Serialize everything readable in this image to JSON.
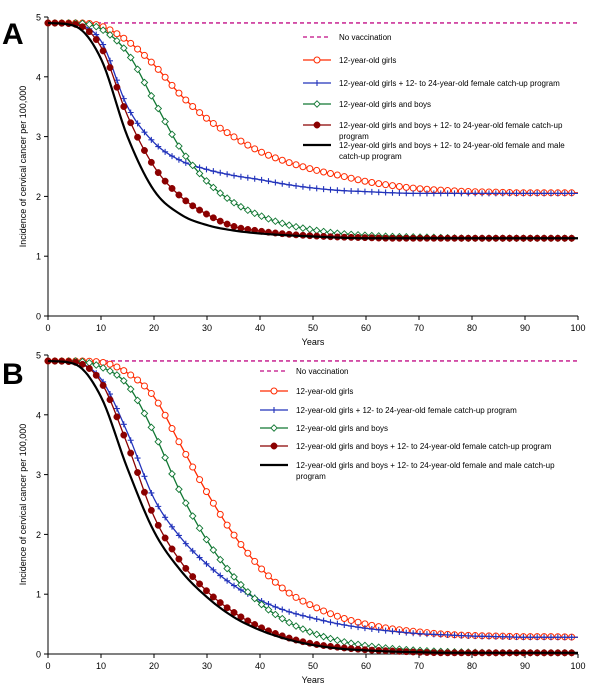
{
  "figure": {
    "series_style": [
      {
        "color": "#cc3399",
        "marker": "none",
        "dash": true
      },
      {
        "color": "#ff2a00",
        "marker": "open-circle",
        "dash": false
      },
      {
        "color": "#2233bb",
        "marker": "plus",
        "dash": false
      },
      {
        "color": "#117733",
        "marker": "open-diamond",
        "dash": false
      },
      {
        "color": "#8b0000",
        "marker": "filled-circle",
        "dash": false
      },
      {
        "color": "#000000",
        "marker": "none",
        "dash": false
      }
    ]
  },
  "chart_data": [
    {
      "panel_label": "A",
      "type": "line",
      "xlabel": "Years",
      "ylabel": "Incidence of cervical cancer per 100,000",
      "xlim": [
        0,
        100
      ],
      "ylim": [
        0,
        5
      ],
      "xticks": [
        "0",
        "10",
        "20",
        "30",
        "40",
        "50",
        "60",
        "70",
        "80",
        "90",
        "100"
      ],
      "yticks": [
        "0",
        "1",
        "2",
        "3",
        "4",
        "5"
      ],
      "legend_position": "top-right",
      "series": [
        {
          "name": "No vaccination",
          "x": [
            0,
            100
          ],
          "y": [
            4.9,
            4.9
          ]
        },
        {
          "name": "12-year-old girls",
          "x": [
            0,
            5,
            10,
            15,
            20,
            25,
            30,
            35,
            40,
            45,
            50,
            55,
            60,
            65,
            70,
            75,
            80,
            85,
            90,
            95,
            100
          ],
          "y": [
            4.9,
            4.9,
            4.85,
            4.6,
            4.2,
            3.7,
            3.3,
            3.0,
            2.75,
            2.58,
            2.45,
            2.35,
            2.25,
            2.18,
            2.13,
            2.1,
            2.08,
            2.07,
            2.06,
            2.06,
            2.06
          ]
        },
        {
          "name": "12-year-old girls + 12- to 24-year-old female catch-up program",
          "x": [
            0,
            5,
            10,
            15,
            20,
            25,
            30,
            35,
            40,
            45,
            50,
            55,
            60,
            65,
            70,
            75,
            80,
            85,
            90,
            95,
            100
          ],
          "y": [
            4.9,
            4.88,
            4.6,
            3.5,
            2.9,
            2.6,
            2.45,
            2.35,
            2.28,
            2.2,
            2.14,
            2.1,
            2.08,
            2.06,
            2.05,
            2.05,
            2.05,
            2.05,
            2.05,
            2.05,
            2.05
          ]
        },
        {
          "name": "12-year-old girls and boys",
          "x": [
            0,
            5,
            10,
            15,
            20,
            25,
            30,
            35,
            40,
            45,
            50,
            55,
            60,
            65,
            70,
            75,
            80,
            85,
            90,
            95,
            100
          ],
          "y": [
            4.9,
            4.9,
            4.8,
            4.4,
            3.6,
            2.8,
            2.25,
            1.9,
            1.68,
            1.53,
            1.44,
            1.38,
            1.35,
            1.33,
            1.32,
            1.31,
            1.3,
            1.3,
            1.3,
            1.3,
            1.3
          ]
        },
        {
          "name": "12-year-old girls and boys + 12- to 24-year-old female catch-up program",
          "x": [
            0,
            5,
            10,
            15,
            20,
            25,
            30,
            35,
            40,
            45,
            50,
            55,
            60,
            65,
            70,
            75,
            80,
            85,
            90,
            95,
            100
          ],
          "y": [
            4.9,
            4.88,
            4.5,
            3.35,
            2.5,
            2.0,
            1.7,
            1.5,
            1.42,
            1.37,
            1.34,
            1.32,
            1.31,
            1.3,
            1.3,
            1.3,
            1.3,
            1.3,
            1.3,
            1.3,
            1.3
          ]
        },
        {
          "name": "12-year-old girls and boys + 12- to 24-year-old female and male catch-up program",
          "x": [
            0,
            5,
            10,
            15,
            20,
            25,
            30,
            35,
            40,
            45,
            50,
            55,
            60,
            65,
            70,
            75,
            80,
            85,
            90,
            95,
            100
          ],
          "y": [
            4.9,
            4.85,
            4.3,
            3.0,
            2.1,
            1.7,
            1.52,
            1.43,
            1.38,
            1.35,
            1.33,
            1.31,
            1.3,
            1.3,
            1.3,
            1.3,
            1.3,
            1.3,
            1.3,
            1.3,
            1.3
          ]
        }
      ]
    },
    {
      "panel_label": "B",
      "type": "line",
      "xlabel": "Years",
      "ylabel": "Incidence of cervical cancer per 100,000",
      "xlim": [
        0,
        100
      ],
      "ylim": [
        0,
        5
      ],
      "xticks": [
        "0",
        "10",
        "20",
        "30",
        "40",
        "50",
        "60",
        "70",
        "80",
        "90",
        "100"
      ],
      "yticks": [
        "0",
        "1",
        "2",
        "3",
        "4",
        "5"
      ],
      "legend_position": "top-right",
      "series": [
        {
          "name": "No vaccination",
          "x": [
            0,
            100
          ],
          "y": [
            4.9,
            4.9
          ]
        },
        {
          "name": "12-year-old girls",
          "x": [
            0,
            5,
            10,
            15,
            20,
            25,
            30,
            35,
            40,
            45,
            50,
            55,
            60,
            65,
            70,
            75,
            80,
            85,
            90,
            95,
            100
          ],
          "y": [
            4.9,
            4.9,
            4.88,
            4.7,
            4.3,
            3.5,
            2.7,
            2.0,
            1.45,
            1.05,
            0.8,
            0.62,
            0.5,
            0.42,
            0.37,
            0.33,
            0.31,
            0.3,
            0.29,
            0.29,
            0.28
          ]
        },
        {
          "name": "12-year-old girls + 12- to 24-year-old female catch-up program",
          "x": [
            0,
            5,
            10,
            15,
            20,
            25,
            30,
            35,
            40,
            45,
            50,
            55,
            60,
            65,
            70,
            75,
            80,
            85,
            90,
            95,
            100
          ],
          "y": [
            4.9,
            4.88,
            4.6,
            3.7,
            2.6,
            1.95,
            1.5,
            1.15,
            0.9,
            0.72,
            0.6,
            0.5,
            0.43,
            0.38,
            0.34,
            0.32,
            0.3,
            0.29,
            0.28,
            0.28,
            0.28
          ]
        },
        {
          "name": "12-year-old girls and boys",
          "x": [
            0,
            5,
            10,
            15,
            20,
            25,
            30,
            35,
            40,
            45,
            50,
            55,
            60,
            65,
            70,
            75,
            80,
            85,
            90,
            95,
            100
          ],
          "y": [
            4.9,
            4.9,
            4.8,
            4.5,
            3.7,
            2.7,
            1.9,
            1.3,
            0.85,
            0.55,
            0.35,
            0.22,
            0.14,
            0.09,
            0.06,
            0.04,
            0.03,
            0.02,
            0.02,
            0.02,
            0.02
          ]
        },
        {
          "name": "12-year-old girls and boys + 12- to 24-year-old female catch-up program",
          "x": [
            0,
            5,
            10,
            15,
            20,
            25,
            30,
            35,
            40,
            45,
            50,
            55,
            60,
            65,
            70,
            75,
            80,
            85,
            90,
            95,
            100
          ],
          "y": [
            4.9,
            4.88,
            4.55,
            3.5,
            2.3,
            1.55,
            1.05,
            0.7,
            0.45,
            0.28,
            0.17,
            0.11,
            0.07,
            0.05,
            0.03,
            0.02,
            0.02,
            0.02,
            0.02,
            0.02,
            0.02
          ]
        },
        {
          "name": "12-year-old girls and boys + 12- to 24-year-old female and male catch-up program",
          "x": [
            0,
            5,
            10,
            15,
            20,
            25,
            30,
            35,
            40,
            45,
            50,
            55,
            60,
            65,
            70,
            75,
            80,
            85,
            90,
            95,
            100
          ],
          "y": [
            4.9,
            4.85,
            4.3,
            3.1,
            2.05,
            1.4,
            0.95,
            0.62,
            0.4,
            0.25,
            0.15,
            0.09,
            0.06,
            0.04,
            0.03,
            0.02,
            0.02,
            0.02,
            0.02,
            0.02,
            0.02
          ]
        }
      ]
    }
  ]
}
